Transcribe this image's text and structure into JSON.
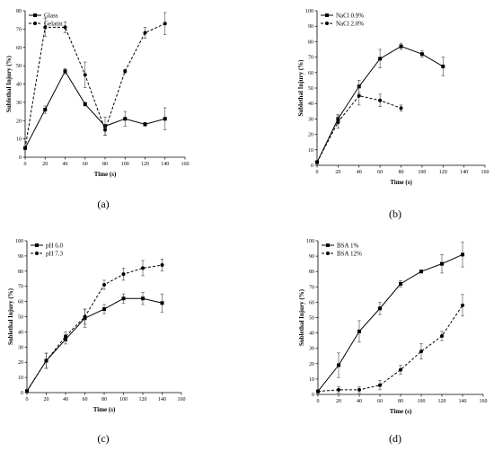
{
  "chart_data": [
    {
      "type": "line",
      "panel_label": "(a)",
      "xlabel": "Time (s)",
      "ylabel": "Sublethal Injury (%)",
      "xlim": [
        0,
        160
      ],
      "ylim": [
        0,
        80
      ],
      "xticks": [
        0,
        20,
        40,
        60,
        80,
        100,
        120,
        140,
        160
      ],
      "yticks": [
        0,
        10,
        20,
        30,
        40,
        50,
        60,
        70,
        80
      ],
      "grid": false,
      "legend_position": "top-left",
      "series": [
        {
          "name": "Glass",
          "style": "solid",
          "marker": "square",
          "x": [
            0,
            20,
            40,
            60,
            80,
            100,
            120,
            140
          ],
          "y": [
            5,
            26,
            47,
            29,
            17,
            21,
            18,
            21
          ],
          "err": [
            0,
            2,
            1.5,
            1,
            5,
            4,
            1,
            6
          ]
        },
        {
          "name": "Gelatin",
          "style": "dashed",
          "marker": "circle",
          "x": [
            0,
            20,
            40,
            60,
            80,
            100,
            120,
            140
          ],
          "y": [
            5,
            71,
            71,
            45,
            15,
            47,
            68,
            73
          ],
          "err": [
            0,
            5,
            3,
            7,
            3,
            1,
            3,
            6
          ]
        }
      ]
    },
    {
      "type": "line",
      "panel_label": "(b)",
      "xlabel": "Time (s)",
      "ylabel": "Sublethal Injury (%)",
      "xlim": [
        0,
        160
      ],
      "ylim": [
        0,
        100
      ],
      "xticks": [
        0,
        20,
        40,
        60,
        80,
        100,
        120,
        140,
        160
      ],
      "yticks": [
        0,
        10,
        20,
        30,
        40,
        50,
        60,
        70,
        80,
        90,
        100
      ],
      "grid": false,
      "legend_position": "top-left",
      "series": [
        {
          "name": "NaCl 0.9%",
          "style": "solid",
          "marker": "square",
          "x": [
            0,
            20,
            40,
            60,
            80,
            100,
            120
          ],
          "y": [
            2,
            30,
            51,
            69,
            77,
            72,
            64
          ],
          "err": [
            0,
            3,
            4,
            6,
            2,
            2,
            6
          ]
        },
        {
          "name": "NaCl 2.0%",
          "style": "dashed",
          "marker": "circle",
          "x": [
            0,
            20,
            40,
            60,
            80
          ],
          "y": [
            2,
            28,
            45,
            42,
            37
          ],
          "err": [
            0,
            4,
            6,
            4,
            2
          ]
        }
      ]
    },
    {
      "type": "line",
      "panel_label": "(c)",
      "xlabel": "Time (s)",
      "ylabel": "Sublethal Injury (%)",
      "xlim": [
        0,
        160
      ],
      "ylim": [
        0,
        100
      ],
      "xticks": [
        0,
        20,
        40,
        60,
        80,
        100,
        120,
        140,
        160
      ],
      "yticks": [
        0,
        10,
        20,
        30,
        40,
        50,
        60,
        70,
        80,
        90,
        100
      ],
      "grid": false,
      "legend_position": "top-left",
      "series": [
        {
          "name": "pH 6.0",
          "style": "solid",
          "marker": "square",
          "x": [
            0,
            20,
            40,
            60,
            80,
            100,
            120,
            140
          ],
          "y": [
            1,
            21,
            35,
            49,
            55,
            62,
            62,
            59
          ],
          "err": [
            0,
            5,
            3,
            6,
            3,
            3,
            4,
            6
          ]
        },
        {
          "name": "pH 7.3",
          "style": "dashed",
          "marker": "circle",
          "x": [
            0,
            20,
            40,
            60,
            80,
            100,
            120,
            140
          ],
          "y": [
            1,
            21,
            37,
            50,
            71,
            78,
            82,
            84
          ],
          "err": [
            0,
            5,
            3,
            5,
            3,
            4,
            5,
            4
          ]
        }
      ]
    },
    {
      "type": "line",
      "panel_label": "(d)",
      "xlabel": "Time (s)",
      "ylabel": "Sublethal Injury (%)",
      "xlim": [
        0,
        160
      ],
      "ylim": [
        0,
        100
      ],
      "xticks": [
        0,
        20,
        40,
        60,
        80,
        100,
        120,
        140,
        160
      ],
      "yticks": [
        0,
        10,
        20,
        30,
        40,
        50,
        60,
        70,
        80,
        90,
        100
      ],
      "grid": false,
      "legend_position": "top-left",
      "series": [
        {
          "name": "BSA 1%",
          "style": "solid",
          "marker": "square",
          "x": [
            0,
            20,
            40,
            60,
            80,
            100,
            120,
            140
          ],
          "y": [
            2,
            19,
            41,
            56,
            72,
            80,
            85,
            91
          ],
          "err": [
            0,
            8,
            7,
            4,
            2,
            1,
            6,
            8
          ]
        },
        {
          "name": "BSA 12%",
          "style": "dashed",
          "marker": "circle",
          "x": [
            0,
            20,
            40,
            60,
            80,
            100,
            120,
            140
          ],
          "y": [
            2,
            3,
            3,
            6,
            16,
            28,
            38,
            58
          ],
          "err": [
            0,
            2,
            2,
            3,
            3,
            5,
            3,
            7
          ]
        }
      ]
    }
  ]
}
